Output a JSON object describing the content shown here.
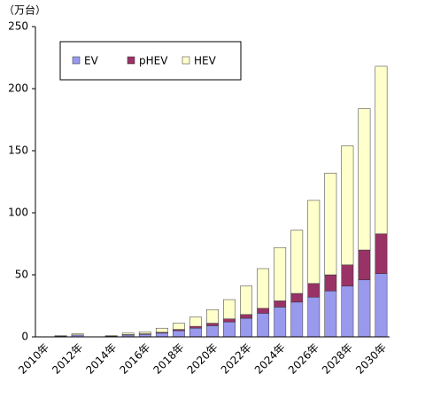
{
  "chart_data": {
    "type": "stacked-bar",
    "unit_label": "（万台）",
    "categories": [
      "2010年",
      null,
      "2012年",
      null,
      "2014年",
      null,
      "2016年",
      null,
      "2018年",
      null,
      "2020年",
      null,
      "2022年",
      null,
      "2024年",
      null,
      "2026年",
      null,
      "2028年",
      null,
      "2030年"
    ],
    "series": [
      {
        "name": "EV",
        "color": "#9999ee",
        "values": [
          0,
          0.5,
          1.5,
          0,
          0.5,
          1.5,
          2,
          3,
          5,
          7,
          9,
          12,
          15,
          19,
          24,
          28,
          32,
          37,
          41,
          46,
          51
        ]
      },
      {
        "name": "pHEV",
        "color": "#993366",
        "values": [
          0,
          0,
          0,
          0,
          0,
          0.3,
          0.5,
          0.7,
          1,
          1.5,
          2,
          2.5,
          3,
          4,
          5,
          7,
          11,
          13,
          17,
          24,
          32
        ]
      },
      {
        "name": "HEV",
        "color": "#ffffcc",
        "values": [
          0,
          0.5,
          1,
          0,
          0.5,
          1.2,
          1.5,
          3.3,
          5,
          7.5,
          11,
          15.5,
          23,
          32,
          43,
          51,
          67,
          82,
          96,
          114,
          135
        ]
      }
    ],
    "ylim": [
      0,
      250
    ],
    "yticks": [
      0,
      50,
      100,
      150,
      200,
      250
    ],
    "grid": false
  }
}
